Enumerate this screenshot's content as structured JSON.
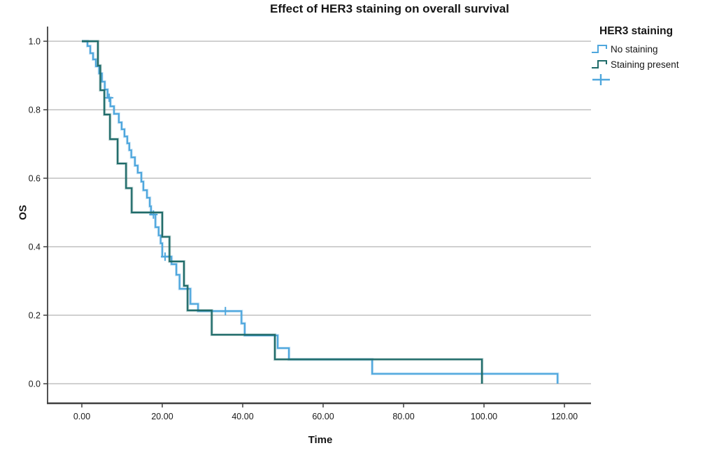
{
  "chart_data": {
    "type": "line",
    "subtype": "kaplan-meier-step",
    "title": "Effect of HER3 staining on overall survival",
    "xlabel": "Time",
    "ylabel": "OS",
    "x_ticks": [
      0,
      20,
      40,
      60,
      80,
      100,
      120
    ],
    "x_tick_labels": [
      "0.00",
      "20.00",
      "40.00",
      "60.00",
      "80.00",
      "100.00",
      "120.00"
    ],
    "y_ticks": [
      0.0,
      0.2,
      0.4,
      0.6,
      0.8,
      1.0
    ],
    "y_tick_labels": [
      "0.0",
      "0.2",
      "0.4",
      "0.6",
      "0.8",
      "1.0"
    ],
    "xlim": [
      -8.5,
      126.5
    ],
    "ylim": [
      -0.06,
      1.04
    ],
    "grid": "horizontal",
    "legend_position": "right",
    "legend_title": "HER3 staining",
    "censored_marker": "+",
    "series": [
      {
        "name": "No staining",
        "color": "#4FA7DD",
        "start": [
          0,
          1.0
        ],
        "steps": [
          [
            1.4,
            0.986
          ],
          [
            2.1,
            0.965
          ],
          [
            2.8,
            0.947
          ],
          [
            3.5,
            0.927
          ],
          [
            4.3,
            0.906
          ],
          [
            5.0,
            0.882
          ],
          [
            5.7,
            0.859
          ],
          [
            6.4,
            0.835
          ],
          [
            7.1,
            0.81
          ],
          [
            8.0,
            0.788
          ],
          [
            9.2,
            0.763
          ],
          [
            9.9,
            0.743
          ],
          [
            10.6,
            0.722
          ],
          [
            11.3,
            0.702
          ],
          [
            11.8,
            0.682
          ],
          [
            12.3,
            0.661
          ],
          [
            13.2,
            0.637
          ],
          [
            13.9,
            0.616
          ],
          [
            14.8,
            0.59
          ],
          [
            15.3,
            0.565
          ],
          [
            16.2,
            0.543
          ],
          [
            16.9,
            0.518
          ],
          [
            17.2,
            0.494
          ],
          [
            18.3,
            0.457
          ],
          [
            19.1,
            0.433
          ],
          [
            19.6,
            0.41
          ],
          [
            20.0,
            0.371
          ],
          [
            22.3,
            0.349
          ],
          [
            23.5,
            0.318
          ],
          [
            24.3,
            0.277
          ],
          [
            27.0,
            0.233
          ],
          [
            28.9,
            0.212
          ],
          [
            39.7,
            0.176
          ],
          [
            40.5,
            0.141
          ],
          [
            48.7,
            0.104
          ],
          [
            51.5,
            0.071
          ],
          [
            72.2,
            0.029
          ],
          [
            118.3,
            0.0
          ]
        ],
        "censored": [
          [
            6.8,
            0.835
          ],
          [
            17.8,
            0.494
          ],
          [
            20.7,
            0.371
          ],
          [
            35.7,
            0.212
          ]
        ]
      },
      {
        "name": "Staining present",
        "color": "#1F6B69",
        "start": [
          0,
          1.0
        ],
        "steps": [
          [
            4.0,
            0.929
          ],
          [
            4.6,
            0.857
          ],
          [
            5.6,
            0.786
          ],
          [
            7.0,
            0.714
          ],
          [
            8.9,
            0.643
          ],
          [
            11.0,
            0.571
          ],
          [
            12.4,
            0.5
          ],
          [
            20.0,
            0.429
          ],
          [
            21.8,
            0.357
          ],
          [
            25.4,
            0.286
          ],
          [
            26.3,
            0.214
          ],
          [
            32.3,
            0.143
          ],
          [
            48.0,
            0.071
          ],
          [
            99.5,
            0.0
          ]
        ],
        "censored": []
      }
    ]
  },
  "legend": {
    "title": "HER3 staining",
    "entries": [
      {
        "icon": "step-line-icon",
        "label": "No staining",
        "color": "#4FA7DD"
      },
      {
        "icon": "step-line-icon",
        "label": "Staining present",
        "color": "#1F6B69"
      },
      {
        "icon": "censored-plus-icon",
        "label": "",
        "color": "#4FA7DD"
      }
    ]
  },
  "style": {
    "grid_color": "#C9C9C9",
    "axis_color": "#3F3F3F",
    "tick_label_color": "#1A1A1A"
  }
}
